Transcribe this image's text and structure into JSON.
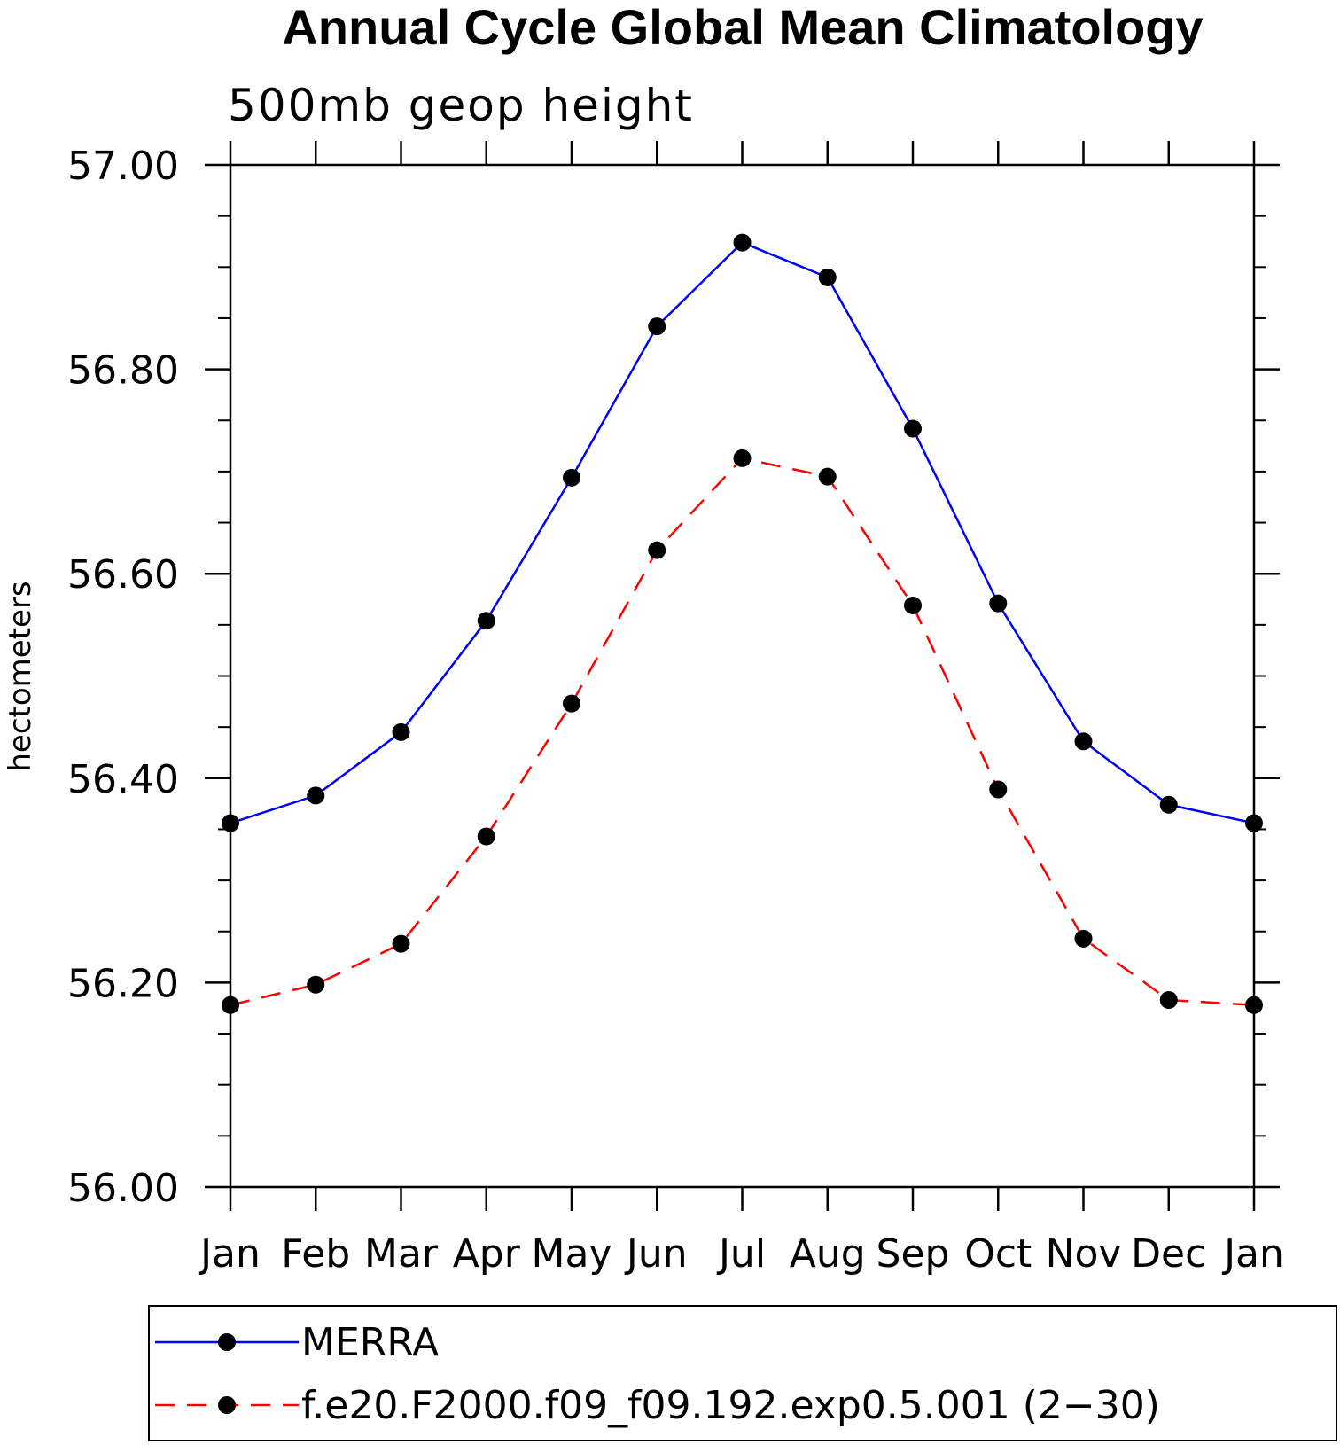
{
  "chart_data": {
    "type": "line",
    "title": "Annual Cycle Global Mean Climatology",
    "subtitle": "500mb geop height",
    "xlabel": "",
    "ylabel": "hectometers",
    "categories": [
      "Jan",
      "Feb",
      "Mar",
      "Apr",
      "May",
      "Jun",
      "Jul",
      "Aug",
      "Sep",
      "Oct",
      "Nov",
      "Dec",
      "Jan"
    ],
    "ylim": [
      56.0,
      57.0
    ],
    "yticks": [
      "56.00",
      "56.20",
      "56.40",
      "56.60",
      "56.80",
      "57.00"
    ],
    "y_minor_step": 0.05,
    "grid": false,
    "legend_position": "bottom",
    "series": [
      {
        "name": "MERRA",
        "color": "#0000ff",
        "dash": "solid",
        "marker": "filled-circle",
        "values": [
          56.356,
          56.383,
          56.445,
          56.554,
          56.694,
          56.842,
          56.924,
          56.89,
          56.742,
          56.571,
          56.436,
          56.374,
          56.356
        ]
      },
      {
        "name": "f.e20.F2000.f09_f09.192.exp0.5.001 (2−30)",
        "color": "#ff0000",
        "dash": "dashed",
        "marker": "filled-circle",
        "values": [
          56.178,
          56.198,
          56.238,
          56.343,
          56.473,
          56.623,
          56.713,
          56.695,
          56.569,
          56.389,
          56.243,
          56.183,
          56.178
        ]
      }
    ]
  }
}
